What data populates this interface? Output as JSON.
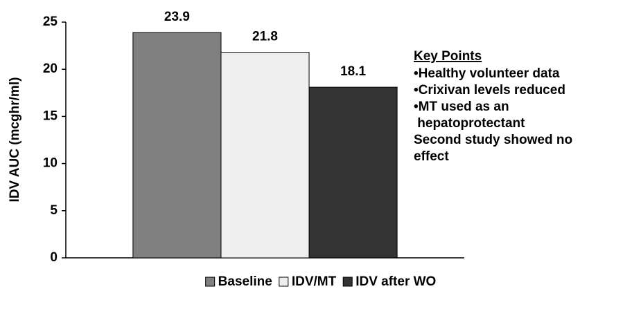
{
  "chart_data": {
    "type": "bar",
    "y_label": "IDV AUC (mcghr/ml)",
    "categories": [
      null
    ],
    "series": [
      {
        "name": "Baseline",
        "color": "#808080",
        "values": [
          23.9
        ]
      },
      {
        "name": "IDV/MT",
        "color": "#eeeeee",
        "values": [
          21.8
        ]
      },
      {
        "name": "IDV after WO",
        "color": "#333333",
        "values": [
          18.1
        ]
      }
    ],
    "ylim": [
      0,
      25
    ],
    "yticks": [
      0,
      5,
      10,
      15,
      20,
      25
    ],
    "legend": "bottom",
    "key_points": {
      "title": "Key Points",
      "lines": [
        "•Healthy volunteer data",
        "•Crixivan levels reduced",
        "•MT used as an",
        " hepatoprotectant",
        "Second study showed no",
        "effect"
      ]
    }
  }
}
